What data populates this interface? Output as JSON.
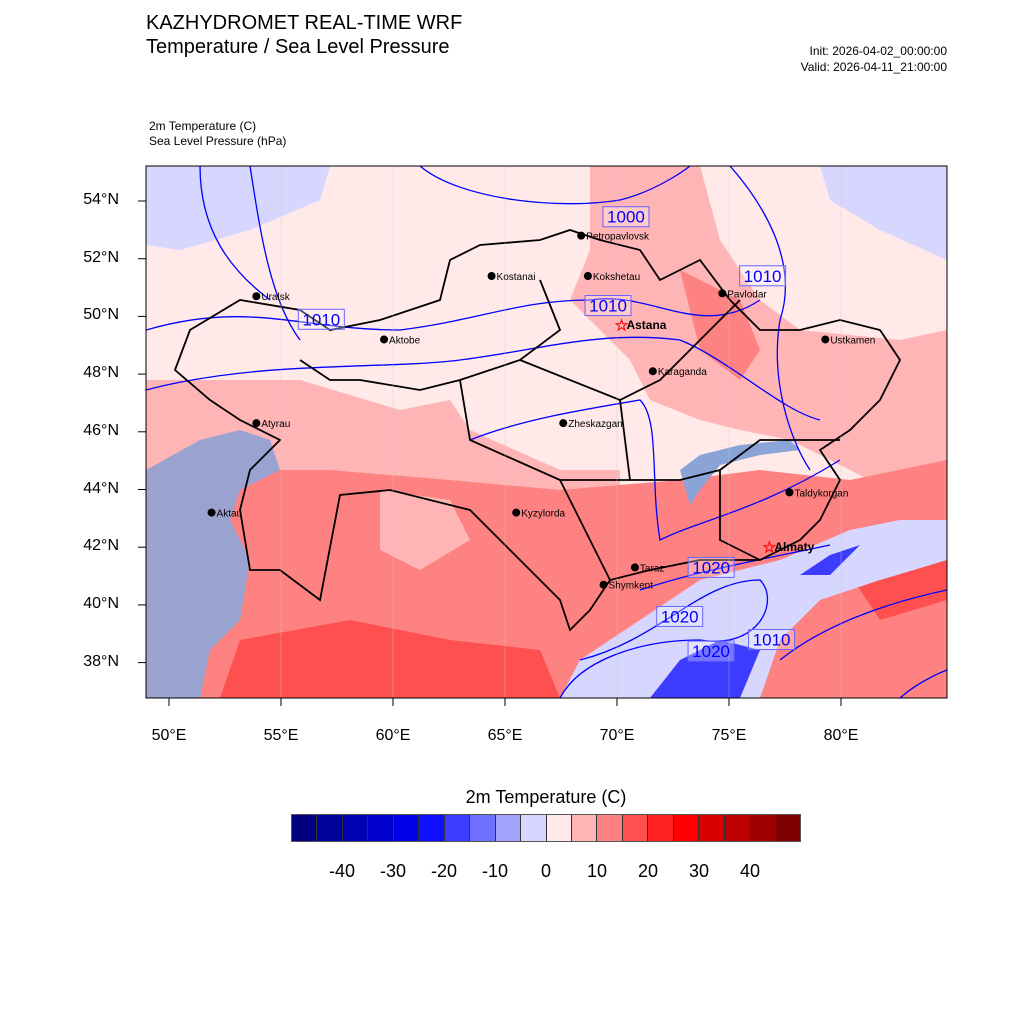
{
  "header": {
    "title": "KAZHYDROMET REAL-TIME WRF",
    "subtitle": "Temperature / Sea Level Pressure",
    "init": "Init: 2026-04-02_00:00:00",
    "valid": "Valid: 2026-04-11_21:00:00"
  },
  "fields": {
    "field1": "2m Temperature   (C)",
    "field2": "Sea Level Pressure   (hPa)"
  },
  "axes": {
    "lat_labels": [
      "54°N",
      "52°N",
      "50°N",
      "48°N",
      "46°N",
      "44°N",
      "42°N",
      "40°N",
      "38°N"
    ],
    "lat_values": [
      54,
      52,
      50,
      48,
      46,
      44,
      42,
      40,
      38
    ],
    "lon_labels": [
      "50°E",
      "55°E",
      "60°E",
      "65°E",
      "70°E",
      "75°E",
      "80°E"
    ],
    "lon_values": [
      50,
      55,
      60,
      65,
      70,
      75,
      80
    ]
  },
  "cities": [
    {
      "name": "Petropavlovsk",
      "lon": 68.4,
      "lat": 52.8,
      "capital": false
    },
    {
      "name": "Kostanai",
      "lon": 64.4,
      "lat": 51.4,
      "capital": false
    },
    {
      "name": "Kokshetau",
      "lon": 68.7,
      "lat": 51.4,
      "capital": false
    },
    {
      "name": "Pavlodar",
      "lon": 74.7,
      "lat": 50.8,
      "capital": false
    },
    {
      "name": "Uralsk",
      "lon": 53.9,
      "lat": 50.7,
      "capital": false
    },
    {
      "name": "Astana",
      "lon": 70.2,
      "lat": 49.7,
      "capital": true
    },
    {
      "name": "Aktobe",
      "lon": 59.6,
      "lat": 49.2,
      "capital": false
    },
    {
      "name": "Ustkamen",
      "lon": 79.3,
      "lat": 49.2,
      "capital": false
    },
    {
      "name": "Karaganda",
      "lon": 71.6,
      "lat": 48.1,
      "capital": false
    },
    {
      "name": "Atyrau",
      "lon": 53.9,
      "lat": 46.3,
      "capital": false
    },
    {
      "name": "Zheskazgan",
      "lon": 67.6,
      "lat": 46.3,
      "capital": false
    },
    {
      "name": "Aktau",
      "lon": 51.9,
      "lat": 43.2,
      "capital": false
    },
    {
      "name": "Kyzylorda",
      "lon": 65.5,
      "lat": 43.2,
      "capital": false
    },
    {
      "name": "Taldykorgan",
      "lon": 77.7,
      "lat": 43.9,
      "capital": false
    },
    {
      "name": "Almaty",
      "lon": 76.8,
      "lat": 42.0,
      "capital": true
    },
    {
      "name": "Taraz",
      "lon": 70.8,
      "lat": 41.3,
      "capital": false
    },
    {
      "name": "Shymkent",
      "lon": 69.4,
      "lat": 40.7,
      "capital": false
    }
  ],
  "contour_labels": [
    {
      "text": "1000",
      "lon": 70.4,
      "lat": 52.9
    },
    {
      "text": "1010",
      "lon": 76.5,
      "lat": 51.2
    },
    {
      "text": "1010",
      "lon": 56.8,
      "lat": 49.9
    },
    {
      "text": "1010",
      "lon": 69.6,
      "lat": 50.1
    },
    {
      "text": "1020",
      "lon": 73.4,
      "lat": 41.3
    },
    {
      "text": "1020",
      "lon": 72.8,
      "lat": 39.6
    },
    {
      "text": "1020",
      "lon": 74.2,
      "lat": 38.4
    },
    {
      "text": "1010",
      "lon": 76.9,
      "lat": 38.8
    }
  ],
  "colorbar": {
    "title": "2m Temperature  (C)",
    "colors": [
      "#000080",
      "#00009a",
      "#0000b4",
      "#0000cd",
      "#0000e6",
      "#0f0fff",
      "#3c3cff",
      "#7070ff",
      "#a4a4ff",
      "#d6d6ff",
      "#ffe9e9",
      "#ffb5b5",
      "#ff8282",
      "#ff5050",
      "#ff2020",
      "#ff0000",
      "#d80000",
      "#bc0000",
      "#a00000",
      "#800000"
    ],
    "labels": [
      "-40",
      "-30",
      "-20",
      "-10",
      "0",
      "10",
      "20",
      "30",
      "40"
    ]
  }
}
